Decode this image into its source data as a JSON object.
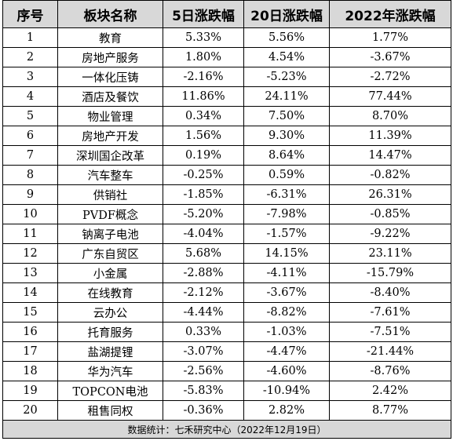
{
  "table": {
    "headers": [
      "序号",
      "板块名称",
      "5日涨跌幅",
      "20日涨跌幅",
      "2022年涨跌幅"
    ],
    "rows": [
      [
        "1",
        "教育",
        "5.33%",
        "5.56%",
        "1.77%"
      ],
      [
        "2",
        "房地产服务",
        "1.80%",
        "4.54%",
        "-3.67%"
      ],
      [
        "3",
        "一体化压铸",
        "-2.16%",
        "-5.23%",
        "-2.72%"
      ],
      [
        "4",
        "酒店及餐饮",
        "11.86%",
        "24.11%",
        "77.44%"
      ],
      [
        "5",
        "物业管理",
        "0.34%",
        "7.50%",
        "8.70%"
      ],
      [
        "6",
        "房地产开发",
        "1.56%",
        "9.30%",
        "11.39%"
      ],
      [
        "7",
        "深圳国企改革",
        "0.19%",
        "8.64%",
        "14.47%"
      ],
      [
        "8",
        "汽车整车",
        "-0.25%",
        "0.59%",
        "-0.82%"
      ],
      [
        "9",
        "供销社",
        "-1.85%",
        "-6.31%",
        "26.31%"
      ],
      [
        "10",
        "PVDF概念",
        "-5.20%",
        "-7.98%",
        "-0.85%"
      ],
      [
        "11",
        "钠离子电池",
        "-4.04%",
        "-1.57%",
        "-9.22%"
      ],
      [
        "12",
        "广东自贸区",
        "5.68%",
        "14.15%",
        "23.11%"
      ],
      [
        "13",
        "小金属",
        "-2.88%",
        "-4.11%",
        "-15.79%"
      ],
      [
        "14",
        "在线教育",
        "-2.12%",
        "-3.67%",
        "-8.40%"
      ],
      [
        "15",
        "云办公",
        "-4.44%",
        "-8.82%",
        "-7.61%"
      ],
      [
        "16",
        "托育服务",
        "0.33%",
        "-1.03%",
        "-7.51%"
      ],
      [
        "17",
        "盐湖提锂",
        "-3.07%",
        "-4.47%",
        "-21.44%"
      ],
      [
        "18",
        "华为汽车",
        "-2.56%",
        "-4.60%",
        "-8.76%"
      ],
      [
        "19",
        "TOPCON电池",
        "-5.83%",
        "-10.94%",
        "2.42%"
      ],
      [
        "20",
        "租售同权",
        "-0.36%",
        "2.82%",
        "8.77%"
      ]
    ],
    "footer": "数据统计：七禾研究中心（2022年12月19日）"
  }
}
